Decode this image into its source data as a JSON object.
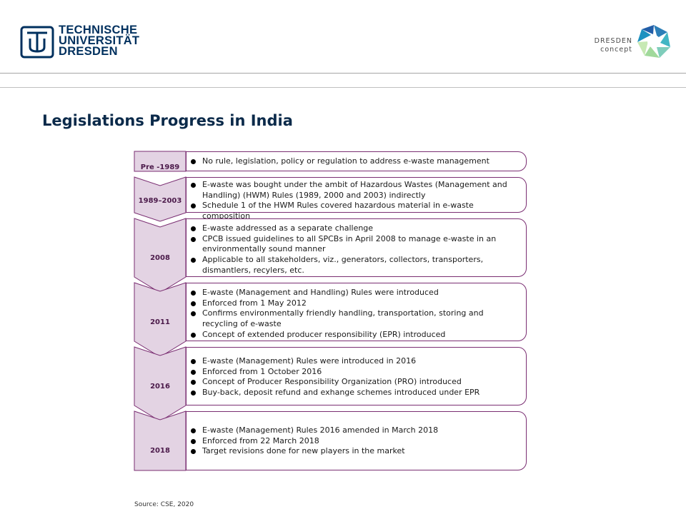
{
  "header": {
    "left_logo": {
      "line1": "TECHNISCHE",
      "line2": "UNIVERSITÄT",
      "line3": "DRESDEN"
    },
    "right_logo": {
      "line1": "DRESDEN",
      "line2": "concept"
    }
  },
  "page": {
    "title": "Legislations Progress in India"
  },
  "timeline": [
    {
      "year": "Pre -1989",
      "bullets": [
        "No rule, legislation, policy or regulation to address e-waste management"
      ]
    },
    {
      "year": "1989–2003",
      "bullets": [
        "E-waste was bought under the ambit of Hazardous Wastes (Management and Handling) (HWM) Rules (1989, 2000 and 2003) indirectly",
        "Schedule 1 of the HWM Rules covered hazardous material in e-waste composition"
      ]
    },
    {
      "year": "2008",
      "bullets": [
        "E-waste addressed as a separate challenge",
        "CPCB issued guidelines to all SPCBs in April 2008 to manage e-waste in an environmentally sound manner",
        "Applicable to all stakeholders, viz., generators, collectors, transporters, dismantlers, recylers, etc."
      ]
    },
    {
      "year": "2011",
      "bullets": [
        "E-waste (Management and Handling) Rules were introduced",
        "Enforced from 1 May 2012",
        "Confirms environmentally friendly handling, transportation, storing and recycling of e-waste",
        "Concept of extended producer responsibility (EPR) introduced"
      ]
    },
    {
      "year": "2016",
      "bullets": [
        "E-waste (Management) Rules were introduced in 2016",
        "Enforced from 1 October 2016",
        "Concept of Producer Responsibility Organization (PRO) introduced",
        "Buy-back, deposit refund and exhange schemes introduced under EPR"
      ]
    },
    {
      "year": "2018",
      "bullets": [
        "E-waste (Management) Rules 2016 amended in March 2018",
        "Enforced from 22 March 2018",
        "Target revisions done for new players in the market"
      ]
    }
  ],
  "source": "Source: CSE, 2020",
  "colors": {
    "navy": "#00305e",
    "chevron_fill": "#e3d3e3",
    "chevron_stroke": "#7a2e72",
    "year_text": "#4b1a4a"
  }
}
